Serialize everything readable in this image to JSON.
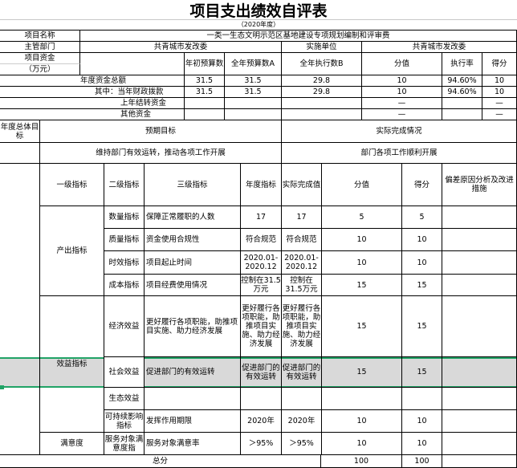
{
  "title": "项目支出绩效自评表",
  "year": "（2020年度）",
  "info": {
    "project_name_label": "项目名称",
    "project_name": "一类一生态文明示范区基地建设专项规划编制和评审费",
    "dept_label": "主管部门",
    "dept": "共青城市发改委",
    "impl_label": "实施单位",
    "impl": "共青城市发改委",
    "funds_label": "项目资金",
    "funds_unit": "（万元）",
    "headers": [
      "年初预算数",
      "全年预算数A",
      "全年执行数B",
      "分值",
      "执行率",
      "得分"
    ],
    "rows": [
      {
        "label": "年度资金总额",
        "values": [
          "31.5",
          "31.5",
          "29.8",
          "10",
          "94.60%",
          "10"
        ]
      },
      {
        "label": "其中：当年财政拨款",
        "values": [
          "31.5",
          "31.5",
          "29.8",
          "10",
          "94.60%",
          "10"
        ]
      },
      {
        "label": "上年结转资金",
        "values": [
          "",
          "",
          "",
          "—",
          "",
          "—"
        ]
      },
      {
        "label": "其他资金",
        "values": [
          "",
          "",
          "",
          "—",
          "",
          "—"
        ]
      }
    ]
  },
  "goals": {
    "label": "年度总体目标",
    "expected_label": "预期目标",
    "actual_label": "实际完成情况",
    "expected": "维持部门有效运转，推动各项工作开展",
    "actual": "部门各项工作顺利开展"
  },
  "indicators": {
    "headers": [
      "一级指标",
      "二级指标",
      "三级指标",
      "年度指标",
      "实际完成值",
      "分值",
      "得分",
      "偏差原因分析及改进措施"
    ],
    "level1": [
      "产出指标",
      "效益指标",
      "满意度"
    ],
    "rows": [
      {
        "l2": "数量指标",
        "l3": "保障正常履职的人数",
        "target": "17",
        "actual": "17",
        "score_value": "5",
        "score": "5"
      },
      {
        "l2": "质量指标",
        "l3": "资金使用合规性",
        "target": "符合规范",
        "actual": "符合规范",
        "score_value": "10",
        "score": "10"
      },
      {
        "l2": "时效指标",
        "l3": "项目起止时间",
        "target": "2020.01-2020.12",
        "actual": "2020.01-2020.12",
        "score_value": "10",
        "score": "10"
      },
      {
        "l2": "成本指标",
        "l3": "项目经费使用情况",
        "target": "控制在31.5万元",
        "actual": "控制在31.5万元",
        "score_value": "15",
        "score": "15"
      },
      {
        "l2": "经济效益",
        "l3": "更好履行各项职能，助推项目实施、助力经济发展",
        "target": "更好履行各项职能，助推项目实施、助力经济发展",
        "actual": "更好履行各项职能，助推项目实施、助力经济发展",
        "score_value": "15",
        "score": "15"
      },
      {
        "l2": "社会效益",
        "l3": "促进部门的有效运转",
        "target": "促进部门的有效运转",
        "actual": "促进部门的有效运转",
        "score_value": "15",
        "score": "15"
      },
      {
        "l2": "生态效益",
        "l3": "",
        "target": "",
        "actual": "",
        "score_value": "",
        "score": ""
      },
      {
        "l2": "可持续影响指标",
        "l3": "发挥作用期限",
        "target": "2020年",
        "actual": "2020年",
        "score_value": "10",
        "score": "10"
      },
      {
        "l2": "服务对象满意度指",
        "l3": "服务对象满意率",
        "target": "＞95%",
        "actual": "＞95%",
        "score_value": "10",
        "score": "10"
      }
    ],
    "total_label": "总分",
    "total_value": "100",
    "total_score": "100"
  },
  "colors": {
    "selection": "#21a366",
    "highlight": "#d9d9d9"
  }
}
